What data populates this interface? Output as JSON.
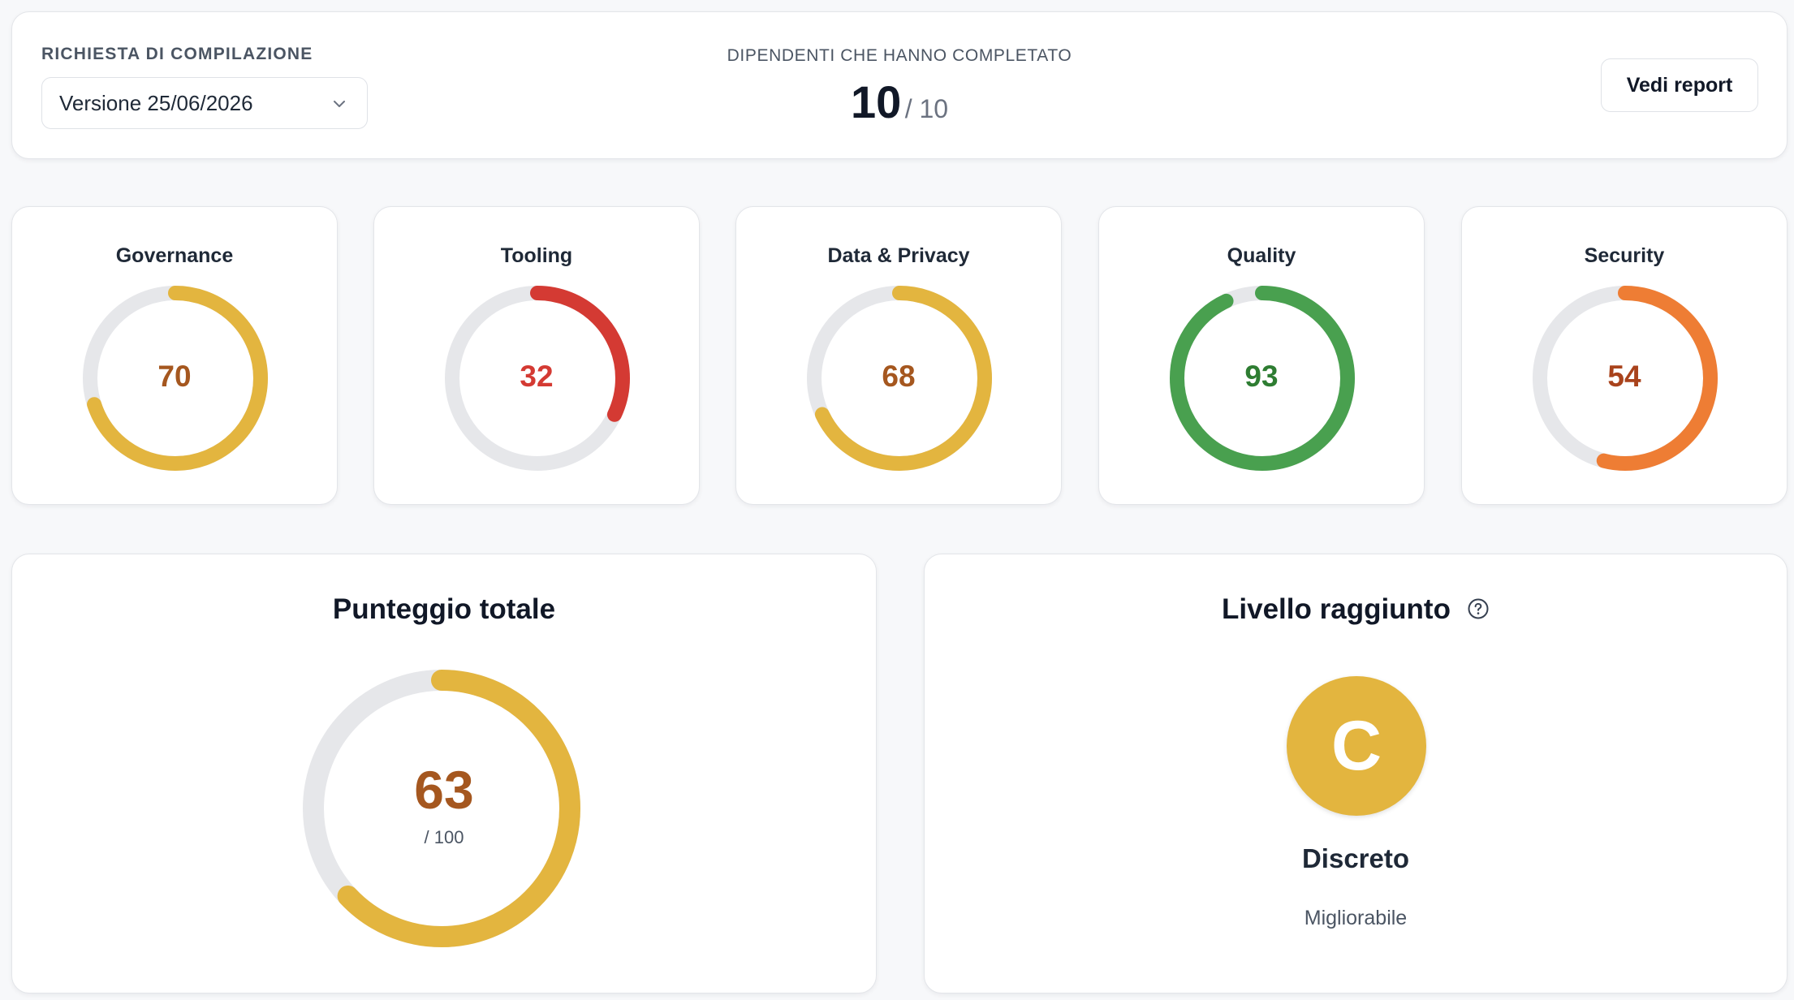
{
  "header": {
    "request_label": "RICHIESTA DI COMPILAZIONE",
    "version_select_value": "Versione 25/06/2026",
    "completed_label": "DIPENDENTI CHE HANNO COMPLETATO",
    "completed_count": "10",
    "completed_total": "/ 10",
    "report_button": "Vedi report"
  },
  "categories": [
    {
      "name": "Governance",
      "score": "70",
      "percent": 70,
      "color": "#e3b53f",
      "text_color": "#a5571f"
    },
    {
      "name": "Tooling",
      "score": "32",
      "percent": 32,
      "color": "#d43a33",
      "text_color": "#d43a33"
    },
    {
      "name": "Data & Privacy",
      "score": "68",
      "percent": 68,
      "color": "#e3b53f",
      "text_color": "#a5571f"
    },
    {
      "name": "Quality",
      "score": "93",
      "percent": 93,
      "color": "#49a04f",
      "text_color": "#2e7d32"
    },
    {
      "name": "Security",
      "score": "54",
      "percent": 54,
      "color": "#ee7d34",
      "text_color": "#a9431c"
    }
  ],
  "total": {
    "title": "Punteggio totale",
    "score": "63",
    "out_of": "/ 100",
    "percent": 63,
    "color": "#e3b53f"
  },
  "level": {
    "title": "Livello raggiunto",
    "grade": "C",
    "name": "Discreto",
    "description": "Migliorabile",
    "color": "#e3b53f"
  },
  "colors": {
    "track": "#e6e7ea",
    "background": "#f7f8fa"
  }
}
